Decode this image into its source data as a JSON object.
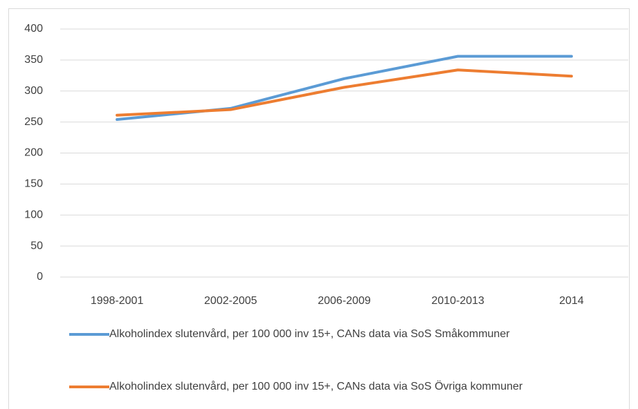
{
  "chart_data": {
    "type": "line",
    "categories": [
      "1998-2001",
      "2002-2005",
      "2006-2009",
      "2010-2013",
      "2014"
    ],
    "series": [
      {
        "name": "Alkoholindex slutenvård, per 100 000 inv 15+, CANs data via SoS Småkommuner",
        "color": "#5b9bd5",
        "values": [
          254,
          272,
          320,
          356,
          356
        ]
      },
      {
        "name": "Alkoholindex slutenvård, per 100 000 inv 15+, CANs data via SoS Övriga kommuner",
        "color": "#ed7d31",
        "values": [
          261,
          270,
          306,
          334,
          324
        ]
      }
    ],
    "ylim": [
      0,
      400
    ],
    "yticks": [
      0,
      50,
      100,
      150,
      200,
      250,
      300,
      350,
      400
    ],
    "grid": true,
    "legend": "bottom"
  }
}
